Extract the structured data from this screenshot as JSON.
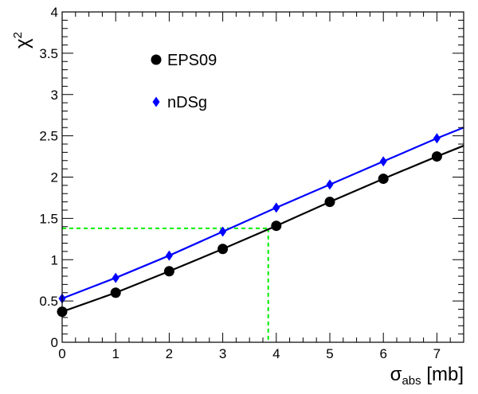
{
  "chart_data": {
    "type": "line",
    "xlim": [
      0,
      7.5
    ],
    "ylim": [
      0,
      4
    ],
    "x_ticks": [
      "0",
      "1",
      "2",
      "3",
      "4",
      "5",
      "6",
      "7"
    ],
    "y_ticks": [
      "0",
      "0.5",
      "1",
      "1.5",
      "2",
      "2.5",
      "3",
      "3.5",
      "4"
    ],
    "xlabel": {
      "main": "σ",
      "sub": "abs",
      "unit": " [mb]"
    },
    "ylabel": {
      "main": "χ",
      "sup": "2"
    },
    "legend_position": "top-left",
    "series": [
      {
        "name": "EPS09",
        "color": "#000000",
        "marker": "circle",
        "x": [
          0,
          1,
          2,
          3,
          4,
          5,
          6,
          7
        ],
        "y": [
          0.37,
          0.6,
          0.86,
          1.13,
          1.41,
          1.7,
          1.98,
          2.25
        ],
        "curve_end": [
          7.5,
          2.38
        ]
      },
      {
        "name": "nDSg",
        "color": "#0000ff",
        "marker": "diamond",
        "x": [
          0,
          1,
          2,
          3,
          4,
          5,
          6,
          7
        ],
        "y": [
          0.53,
          0.78,
          1.05,
          1.34,
          1.63,
          1.91,
          2.19,
          2.47
        ],
        "curve_end": [
          7.5,
          2.6
        ]
      }
    ],
    "reference_lines": {
      "color": "#00ee00",
      "x": 3.85,
      "y": 1.38
    }
  }
}
